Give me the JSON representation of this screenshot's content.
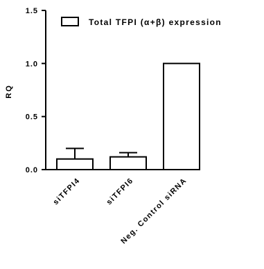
{
  "chart_data": {
    "type": "bar",
    "ylabel": "RQ",
    "xlabel": "",
    "ylim": [
      0,
      1.5
    ],
    "yticks": [
      "0.0",
      "0.5",
      "1.0",
      "1.5"
    ],
    "categories": [
      "siTFPI4",
      "siTFPI6",
      "Neg. Control siRNA"
    ],
    "series": [
      {
        "name": "Total TFPI (α+β) expression",
        "values": [
          0.1,
          0.12,
          1.0
        ],
        "error_upper": [
          0.1,
          0.04,
          null
        ]
      }
    ],
    "legend_position": "top-right",
    "grid": false,
    "bar_fill": "#ffffff",
    "bar_stroke": "#000000"
  }
}
